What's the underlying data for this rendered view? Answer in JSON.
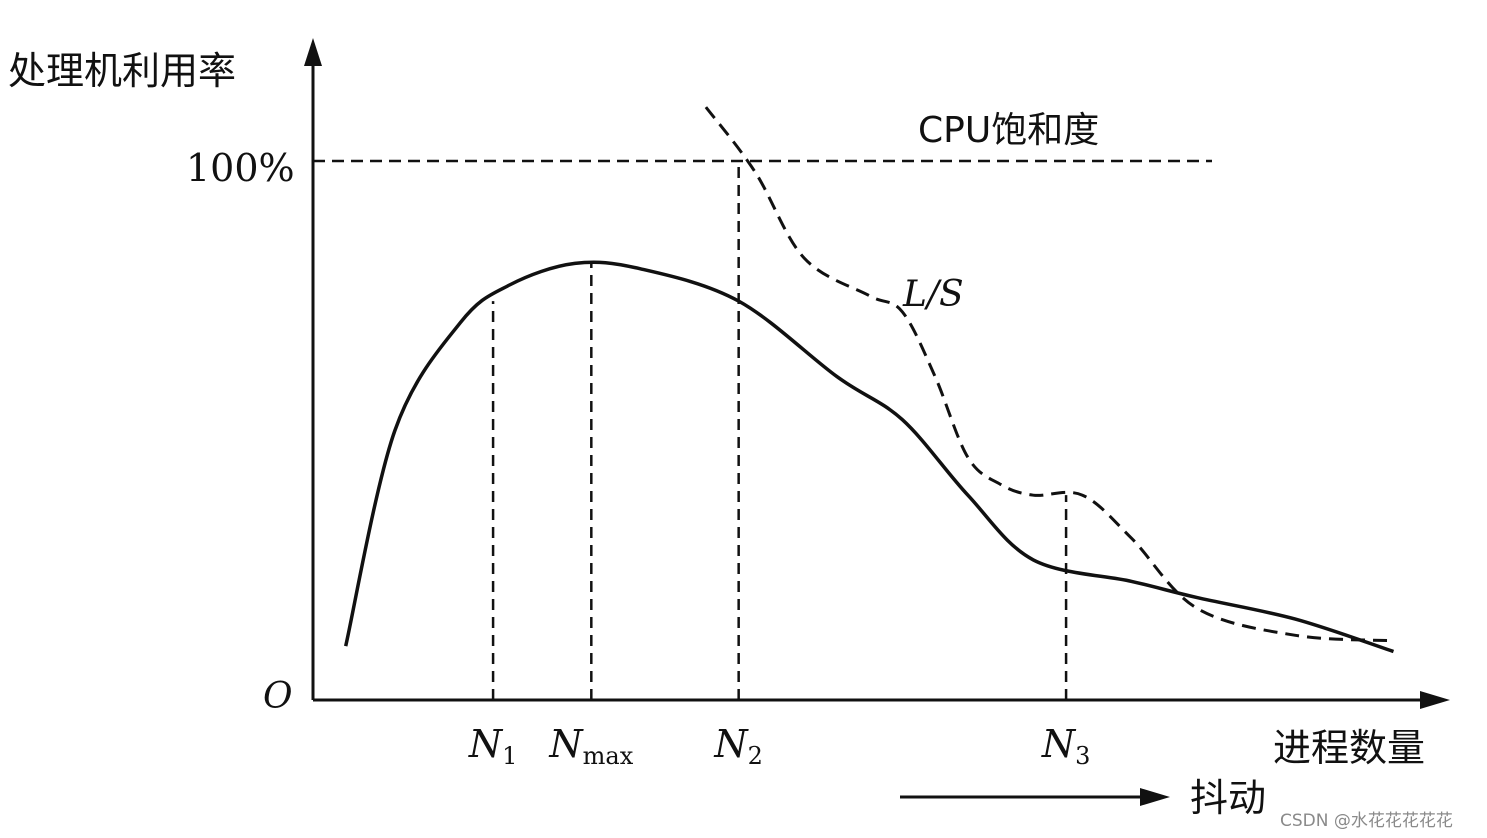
{
  "chart_data": {
    "type": "line",
    "ylabel": "处理机利用率",
    "xlabel": "进程数量",
    "y_tick_100": "100%",
    "origin_label": "O",
    "saturation_label": "CPU饱和度",
    "ls_label": "L/S",
    "thrashing_label": "抖动",
    "x_markers": [
      {
        "base": "N",
        "sub": "1"
      },
      {
        "base": "N",
        "sub": "max"
      },
      {
        "base": "N",
        "sub": "2"
      },
      {
        "base": "N",
        "sub": "3"
      }
    ],
    "series": [
      {
        "style": "solid",
        "x": [
          0.1,
          0.25,
          0.45,
          0.6,
          0.8,
          1.0,
          1.3,
          1.6,
          1.8,
          2.0,
          2.2,
          2.5,
          2.7,
          3.0,
          3.3
        ],
        "y": [
          0.1,
          0.5,
          0.7,
          0.77,
          0.81,
          0.8,
          0.74,
          0.6,
          0.52,
          0.38,
          0.26,
          0.22,
          0.19,
          0.15,
          0.09
        ]
      },
      {
        "style": "dashed",
        "x": [
          1.2,
          1.35,
          1.5,
          1.7,
          1.8,
          1.9,
          2.0,
          2.1,
          2.2,
          2.35,
          2.5,
          2.7,
          3.0,
          3.3
        ],
        "y": [
          1.1,
          0.98,
          0.82,
          0.75,
          0.72,
          0.6,
          0.45,
          0.4,
          0.38,
          0.38,
          0.3,
          0.17,
          0.12,
          0.11
        ]
      }
    ],
    "xlim": [
      0,
      3.5
    ],
    "ylim": [
      0,
      1.2
    ],
    "saturation_level": 1.0,
    "marker_x": [
      0.55,
      0.85,
      1.3,
      2.3
    ],
    "marker_y_top": [
      0.74,
      0.81,
      1.0,
      0.38
    ]
  },
  "watermark": "CSDN @水花花花花花"
}
